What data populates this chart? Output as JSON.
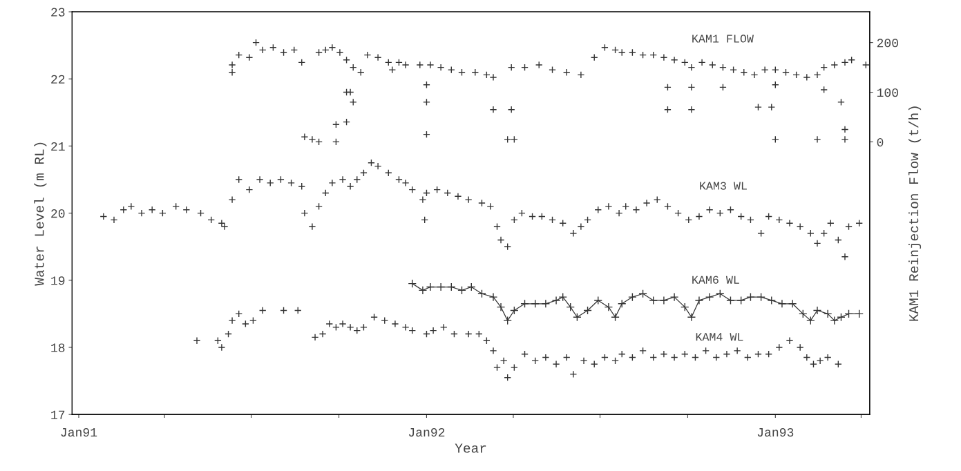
{
  "chart_data": {
    "type": "scatter",
    "xlabel": "Year",
    "ylabel": "Water Level (m RL)",
    "y2label": "KAM1 Reinjection Flow (t/h)",
    "xlim": [
      "1990-12-25",
      "1993-04-10"
    ],
    "xticks": [
      {
        "value": "1991-01-01",
        "label": "Jan91"
      },
      {
        "value": "1991-04-01",
        "label": null
      },
      {
        "value": "1991-07-01",
        "label": null
      },
      {
        "value": "1991-10-01",
        "label": null
      },
      {
        "value": "1992-01-01",
        "label": "Jan92"
      },
      {
        "value": "1992-04-01",
        "label": null
      },
      {
        "value": "1992-07-01",
        "label": null
      },
      {
        "value": "1992-10-01",
        "label": null
      },
      {
        "value": "1993-01-01",
        "label": "Jan93"
      },
      {
        "value": "1993-04-01",
        "label": null
      }
    ],
    "ylim": [
      17,
      23
    ],
    "yticks": [
      17,
      18,
      19,
      20,
      21,
      22,
      23
    ],
    "y2lim": [
      -549,
      262
    ],
    "y2ticks": [
      0,
      100,
      200
    ],
    "marker": "cross",
    "series": [
      {
        "name": "KAM1 FLOW",
        "axis": "y2",
        "color": "#333333",
        "x": [
          "1991-06-11",
          "1991-06-11",
          "1991-06-18",
          "1991-06-29",
          "1991-07-06",
          "1991-07-13",
          "1991-07-24",
          "1991-08-04",
          "1991-08-15",
          "1991-08-23",
          "1991-09-10",
          "1991-09-17",
          "1991-09-24",
          "1991-10-02",
          "1991-10-09",
          "1991-10-16",
          "1991-10-24",
          "1991-10-31",
          "1991-11-11",
          "1991-11-22",
          "1991-11-26",
          "1991-12-03",
          "1991-12-10",
          "1991-12-25",
          "1992-01-05",
          "1992-01-16",
          "1992-01-27",
          "1992-02-07",
          "1992-02-21",
          "1992-03-04",
          "1992-03-11",
          "1992-03-30",
          "1992-04-13",
          "1992-04-28",
          "1992-05-12",
          "1992-05-27",
          "1992-06-11",
          "1992-06-25",
          "1992-07-06",
          "1992-07-17",
          "1992-07-24",
          "1992-08-04",
          "1992-08-15",
          "1992-08-26",
          "1992-09-06",
          "1992-09-17",
          "1992-09-28",
          "1992-10-05",
          "1992-10-16",
          "1992-10-27",
          "1992-11-07",
          "1992-11-18",
          "1992-11-29",
          "1992-12-10",
          "1992-12-21",
          "1993-01-01",
          "1993-01-12",
          "1993-01-23",
          "1993-02-03",
          "1993-02-14",
          "1993-02-21",
          "1993-03-04",
          "1993-03-15",
          "1993-03-22",
          "1993-04-06",
          "1991-08-26",
          "1991-09-03",
          "1991-09-10",
          "1991-09-28",
          "1991-10-09",
          "1991-09-28",
          "1991-10-09",
          "1991-10-13",
          "1991-10-16",
          "1992-01-01",
          "1992-01-01",
          "1992-01-01",
          "1992-03-11",
          "1992-03-30",
          "1992-03-26",
          "1992-04-02",
          "1992-09-10",
          "1992-09-10",
          "1992-10-05",
          "1992-10-05",
          "1992-11-07",
          "1992-12-14",
          "1992-12-28",
          "1993-01-01",
          "1993-01-01",
          "1993-02-14",
          "1993-02-21",
          "1993-03-11",
          "1993-03-15",
          "1993-03-15"
        ],
        "values": [
          155,
          140,
          175,
          170,
          200,
          185,
          190,
          180,
          185,
          160,
          180,
          185,
          190,
          180,
          165,
          150,
          140,
          175,
          170,
          160,
          145,
          160,
          155,
          155,
          155,
          150,
          145,
          140,
          140,
          135,
          130,
          150,
          150,
          155,
          145,
          140,
          135,
          170,
          190,
          185,
          180,
          180,
          175,
          175,
          170,
          165,
          160,
          150,
          160,
          155,
          150,
          145,
          140,
          135,
          145,
          145,
          140,
          135,
          130,
          135,
          150,
          155,
          160,
          165,
          155,
          10,
          5,
          0,
          35,
          40,
          0,
          100,
          100,
          80,
          80,
          115,
          15,
          65,
          65,
          5,
          5,
          110,
          65,
          110,
          65,
          110,
          70,
          70,
          115,
          5,
          5,
          105,
          80,
          25,
          5
        ]
      },
      {
        "name": "KAM3 WL",
        "color": "#333333",
        "x": [
          "1991-01-27",
          "1991-02-07",
          "1991-02-17",
          "1991-02-25",
          "1991-03-08",
          "1991-03-19",
          "1991-03-30",
          "1991-04-13",
          "1991-04-24",
          "1991-05-09",
          "1991-05-20",
          "1991-05-31",
          "1991-06-03",
          "1991-06-11",
          "1991-06-18",
          "1991-06-29",
          "1991-07-10",
          "1991-07-21",
          "1991-08-01",
          "1991-08-12",
          "1991-08-23",
          "1991-08-26",
          "1991-09-03",
          "1991-09-10",
          "1991-09-17",
          "1991-09-24",
          "1991-10-05",
          "1991-10-13",
          "1991-10-20",
          "1991-10-27",
          "1991-11-04",
          "1991-11-11",
          "1991-11-22",
          "1991-12-03",
          "1991-12-10",
          "1991-12-17",
          "1991-12-28",
          "1991-12-30",
          "1992-01-01",
          "1992-01-12",
          "1992-01-23",
          "1992-02-03",
          "1992-02-14",
          "1992-02-28",
          "1992-03-08",
          "1992-03-15",
          "1992-03-19",
          "1992-03-26",
          "1992-04-02",
          "1992-04-10",
          "1992-04-21",
          "1992-05-01",
          "1992-05-12",
          "1992-05-23",
          "1992-06-03",
          "1992-06-11",
          "1992-06-18",
          "1992-06-29",
          "1992-07-10",
          "1992-07-21",
          "1992-07-28",
          "1992-08-08",
          "1992-08-19",
          "1992-08-30",
          "1992-09-10",
          "1992-09-21",
          "1992-10-02",
          "1992-10-13",
          "1992-10-24",
          "1992-11-04",
          "1992-11-15",
          "1992-11-26",
          "1992-12-06",
          "1992-12-17",
          "1992-12-25",
          "1993-01-05",
          "1993-01-16",
          "1993-01-27",
          "1993-02-07",
          "1993-02-14",
          "1993-02-21",
          "1993-02-28",
          "1993-03-08",
          "1993-03-15",
          "1993-03-19",
          "1993-03-30"
        ],
        "values": [
          19.95,
          19.9,
          20.05,
          20.1,
          20.0,
          20.05,
          20.0,
          20.1,
          20.05,
          20.0,
          19.9,
          19.85,
          19.8,
          20.2,
          20.5,
          20.35,
          20.5,
          20.45,
          20.5,
          20.45,
          20.4,
          20.0,
          19.8,
          20.1,
          20.3,
          20.45,
          20.5,
          20.4,
          20.5,
          20.6,
          20.75,
          20.7,
          20.6,
          20.5,
          20.45,
          20.35,
          20.2,
          19.9,
          20.3,
          20.35,
          20.3,
          20.25,
          20.2,
          20.15,
          20.1,
          19.8,
          19.6,
          19.5,
          19.9,
          20.0,
          19.95,
          19.95,
          19.9,
          19.85,
          19.7,
          19.8,
          19.9,
          20.05,
          20.1,
          20.0,
          20.1,
          20.05,
          20.15,
          20.2,
          20.1,
          20.0,
          19.9,
          19.95,
          20.05,
          20.0,
          20.05,
          19.95,
          19.9,
          19.7,
          19.95,
          19.9,
          19.85,
          19.8,
          19.7,
          19.55,
          19.7,
          19.85,
          19.6,
          19.35,
          19.8,
          19.85
        ]
      },
      {
        "name": "KAM6 WL",
        "type": "line",
        "color": "#333333",
        "x": [
          "1991-12-17",
          "1991-12-28",
          "1992-01-05",
          "1992-01-16",
          "1992-01-27",
          "1992-02-07",
          "1992-02-17",
          "1992-02-28",
          "1992-03-11",
          "1992-03-19",
          "1992-03-26",
          "1992-04-02",
          "1992-04-13",
          "1992-04-24",
          "1992-05-05",
          "1992-05-16",
          "1992-05-23",
          "1992-05-31",
          "1992-06-07",
          "1992-06-18",
          "1992-06-29",
          "1992-07-10",
          "1992-07-17",
          "1992-07-24",
          "1992-08-04",
          "1992-08-15",
          "1992-08-26",
          "1992-09-06",
          "1992-09-17",
          "1992-09-28",
          "1992-10-05",
          "1992-10-13",
          "1992-10-24",
          "1992-11-04",
          "1992-11-15",
          "1992-11-26",
          "1992-12-06",
          "1992-12-17",
          "1992-12-28",
          "1993-01-08",
          "1993-01-19",
          "1993-01-30",
          "1993-02-07",
          "1993-02-14",
          "1993-02-25",
          "1993-03-04",
          "1993-03-11",
          "1993-03-19",
          "1993-03-30"
        ],
        "values": [
          18.95,
          18.85,
          18.9,
          18.9,
          18.9,
          18.85,
          18.9,
          18.8,
          18.75,
          18.6,
          18.4,
          18.55,
          18.65,
          18.65,
          18.65,
          18.7,
          18.75,
          18.6,
          18.45,
          18.55,
          18.7,
          18.6,
          18.45,
          18.65,
          18.75,
          18.8,
          18.7,
          18.7,
          18.75,
          18.6,
          18.45,
          18.7,
          18.75,
          18.8,
          18.7,
          18.7,
          18.75,
          18.75,
          18.7,
          18.65,
          18.65,
          18.5,
          18.4,
          18.55,
          18.5,
          18.4,
          18.45,
          18.5,
          18.5
        ]
      },
      {
        "name": "KAM4 WL",
        "color": "#333333",
        "x": [
          "1991-05-05",
          "1991-05-27",
          "1991-05-31",
          "1991-06-07",
          "1991-06-11",
          "1991-06-18",
          "1991-06-25",
          "1991-07-03",
          "1991-07-13",
          "1991-08-04",
          "1991-08-19",
          "1991-09-06",
          "1991-09-14",
          "1991-09-21",
          "1991-09-28",
          "1991-10-05",
          "1991-10-13",
          "1991-10-20",
          "1991-10-27",
          "1991-11-07",
          "1991-11-18",
          "1991-11-29",
          "1991-12-10",
          "1991-12-17",
          "1992-01-01",
          "1992-01-08",
          "1992-01-19",
          "1992-01-30",
          "1992-02-14",
          "1992-02-25",
          "1992-03-04",
          "1992-03-11",
          "1992-03-15",
          "1992-03-22",
          "1992-03-26",
          "1992-04-02",
          "1992-04-13",
          "1992-04-24",
          "1992-05-05",
          "1992-05-16",
          "1992-05-27",
          "1992-06-03",
          "1992-06-14",
          "1992-06-25",
          "1992-07-06",
          "1992-07-17",
          "1992-07-24",
          "1992-08-04",
          "1992-08-15",
          "1992-08-26",
          "1992-09-06",
          "1992-09-17",
          "1992-09-28",
          "1992-10-09",
          "1992-10-20",
          "1992-10-31",
          "1992-11-11",
          "1992-11-22",
          "1992-12-03",
          "1992-12-14",
          "1992-12-25",
          "1993-01-05",
          "1993-01-16",
          "1993-01-27",
          "1993-02-03",
          "1993-02-10",
          "1993-02-17",
          "1993-02-25",
          "1993-03-08"
        ],
        "values": [
          18.1,
          18.1,
          18.0,
          18.2,
          18.4,
          18.5,
          18.35,
          18.4,
          18.55,
          18.55,
          18.55,
          18.15,
          18.2,
          18.35,
          18.3,
          18.35,
          18.3,
          18.25,
          18.3,
          18.45,
          18.4,
          18.35,
          18.3,
          18.25,
          18.2,
          18.25,
          18.3,
          18.2,
          18.2,
          18.2,
          18.1,
          17.95,
          17.7,
          17.8,
          17.55,
          17.7,
          17.9,
          17.8,
          17.85,
          17.75,
          17.85,
          17.6,
          17.8,
          17.75,
          17.85,
          17.8,
          17.9,
          17.85,
          17.95,
          17.85,
          17.9,
          17.85,
          17.9,
          17.85,
          17.95,
          17.85,
          17.9,
          17.95,
          17.85,
          17.9,
          17.9,
          18.0,
          18.1,
          18.0,
          17.85,
          17.75,
          17.8,
          17.85,
          17.75
        ]
      }
    ]
  }
}
